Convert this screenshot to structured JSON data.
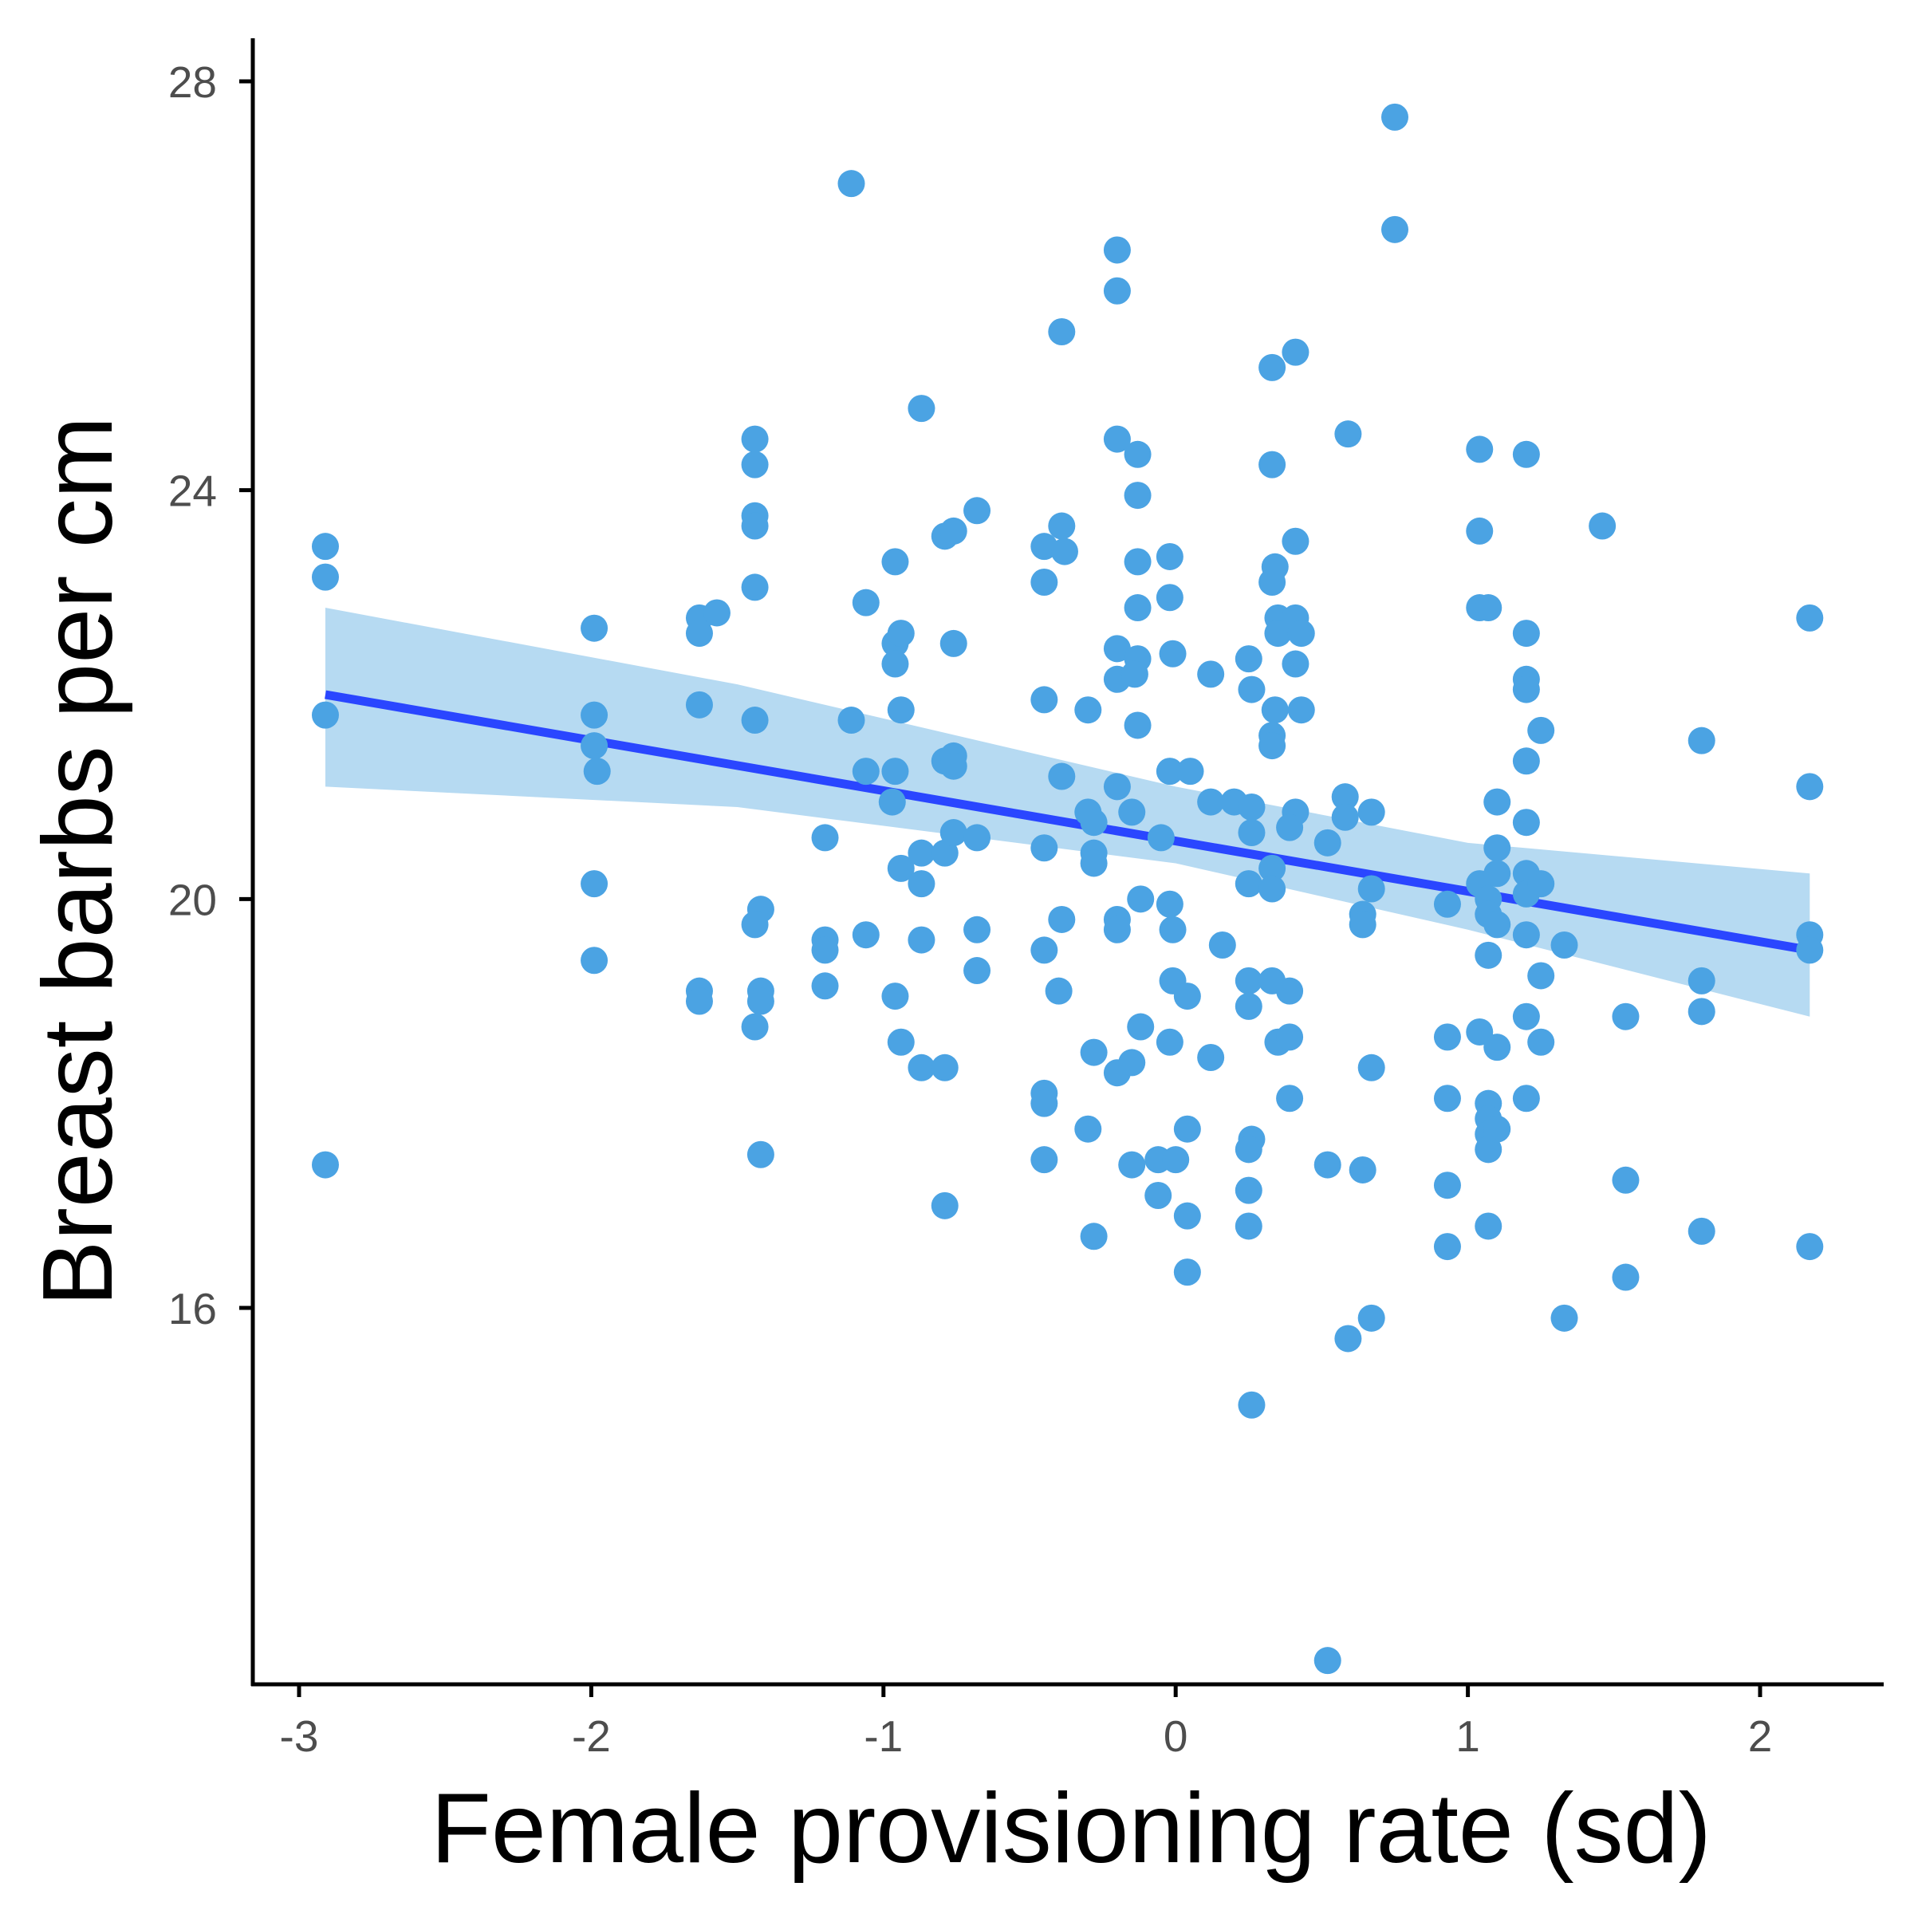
{
  "chart_data": {
    "type": "scatter",
    "xlabel": "Female provisioning rate (sd)",
    "ylabel": "Breast barbs per cm",
    "xlim": [
      -3.16,
      2.42
    ],
    "ylim": [
      11.56,
      28.4
    ],
    "x_ticks": [
      -3,
      -2,
      -1,
      0,
      1,
      2
    ],
    "x_tick_labels": [
      "-3",
      "-2",
      "-1",
      "0",
      "1",
      "2"
    ],
    "y_ticks": [
      16,
      20,
      24,
      28
    ],
    "y_tick_labels": [
      "16",
      "20",
      "24",
      "28"
    ],
    "grid": false,
    "legend": "none",
    "point_color": "#4BA3E3",
    "fit_color": "#2A46FF",
    "ribbon_color": "#B6DAF2",
    "fit_line": {
      "x": [
        -2.91,
        2.17
      ],
      "y": [
        22.0,
        19.5
      ]
    },
    "confidence_band": {
      "x": [
        -2.91,
        -1.5,
        0.0,
        1.0,
        2.17
      ],
      "upper": [
        22.85,
        22.1,
        21.1,
        20.55,
        20.25
      ],
      "lower": [
        21.1,
        20.9,
        20.35,
        19.7,
        18.85
      ]
    },
    "points": [
      {
        "x": -2.91,
        "y": 23.45
      },
      {
        "x": -2.91,
        "y": 23.15
      },
      {
        "x": -2.91,
        "y": 21.8
      },
      {
        "x": -2.91,
        "y": 17.4
      },
      {
        "x": -1.99,
        "y": 22.65
      },
      {
        "x": -1.99,
        "y": 21.8
      },
      {
        "x": -1.99,
        "y": 21.5
      },
      {
        "x": -1.98,
        "y": 21.25
      },
      {
        "x": -1.99,
        "y": 20.15
      },
      {
        "x": -1.99,
        "y": 19.4
      },
      {
        "x": -1.63,
        "y": 22.75
      },
      {
        "x": -1.63,
        "y": 22.6
      },
      {
        "x": -1.57,
        "y": 22.8
      },
      {
        "x": -1.63,
        "y": 21.9
      },
      {
        "x": -1.63,
        "y": 19.1
      },
      {
        "x": -1.63,
        "y": 19.0
      },
      {
        "x": -1.44,
        "y": 24.5
      },
      {
        "x": -1.44,
        "y": 24.25
      },
      {
        "x": -1.44,
        "y": 23.75
      },
      {
        "x": -1.44,
        "y": 23.65
      },
      {
        "x": -1.44,
        "y": 23.05
      },
      {
        "x": -1.44,
        "y": 21.75
      },
      {
        "x": -1.42,
        "y": 19.9
      },
      {
        "x": -1.44,
        "y": 19.75
      },
      {
        "x": -1.42,
        "y": 19.1
      },
      {
        "x": -1.42,
        "y": 19.0
      },
      {
        "x": -1.44,
        "y": 18.75
      },
      {
        "x": -1.42,
        "y": 17.5
      },
      {
        "x": -1.11,
        "y": 27.0
      },
      {
        "x": -1.2,
        "y": 20.6
      },
      {
        "x": -1.2,
        "y": 19.6
      },
      {
        "x": -1.2,
        "y": 19.5
      },
      {
        "x": -1.2,
        "y": 19.15
      },
      {
        "x": -1.11,
        "y": 21.75
      },
      {
        "x": -1.06,
        "y": 22.9
      },
      {
        "x": -1.06,
        "y": 21.25
      },
      {
        "x": -1.06,
        "y": 19.65
      },
      {
        "x": -0.96,
        "y": 23.3
      },
      {
        "x": -0.96,
        "y": 22.5
      },
      {
        "x": -0.96,
        "y": 22.3
      },
      {
        "x": -0.96,
        "y": 21.25
      },
      {
        "x": -0.97,
        "y": 20.95
      },
      {
        "x": -0.96,
        "y": 19.05
      },
      {
        "x": -0.94,
        "y": 22.6
      },
      {
        "x": -0.94,
        "y": 21.85
      },
      {
        "x": -0.94,
        "y": 20.3
      },
      {
        "x": -0.94,
        "y": 18.6
      },
      {
        "x": -0.87,
        "y": 24.8
      },
      {
        "x": -0.87,
        "y": 20.45
      },
      {
        "x": -0.87,
        "y": 20.15
      },
      {
        "x": -0.87,
        "y": 19.6
      },
      {
        "x": -0.87,
        "y": 18.35
      },
      {
        "x": -0.79,
        "y": 23.55
      },
      {
        "x": -0.79,
        "y": 21.35
      },
      {
        "x": -0.79,
        "y": 20.45
      },
      {
        "x": -0.79,
        "y": 18.35
      },
      {
        "x": -0.79,
        "y": 17.0
      },
      {
        "x": -0.76,
        "y": 23.6
      },
      {
        "x": -0.76,
        "y": 22.5
      },
      {
        "x": -0.76,
        "y": 21.4
      },
      {
        "x": -0.76,
        "y": 21.3
      },
      {
        "x": -0.76,
        "y": 20.65
      },
      {
        "x": -0.68,
        "y": 23.8
      },
      {
        "x": -0.68,
        "y": 20.6
      },
      {
        "x": -0.68,
        "y": 19.7
      },
      {
        "x": -0.68,
        "y": 19.3
      },
      {
        "x": -0.45,
        "y": 23.45
      },
      {
        "x": -0.45,
        "y": 23.1
      },
      {
        "x": -0.45,
        "y": 21.95
      },
      {
        "x": -0.45,
        "y": 20.5
      },
      {
        "x": -0.45,
        "y": 19.5
      },
      {
        "x": -0.45,
        "y": 18.1
      },
      {
        "x": -0.45,
        "y": 18.0
      },
      {
        "x": -0.45,
        "y": 17.45
      },
      {
        "x": -0.39,
        "y": 25.55
      },
      {
        "x": -0.39,
        "y": 23.65
      },
      {
        "x": -0.38,
        "y": 23.4
      },
      {
        "x": -0.39,
        "y": 21.2
      },
      {
        "x": -0.39,
        "y": 19.8
      },
      {
        "x": -0.4,
        "y": 19.1
      },
      {
        "x": -0.3,
        "y": 21.85
      },
      {
        "x": -0.3,
        "y": 20.85
      },
      {
        "x": -0.28,
        "y": 20.75
      },
      {
        "x": -0.28,
        "y": 20.45
      },
      {
        "x": -0.28,
        "y": 20.35
      },
      {
        "x": -0.28,
        "y": 18.5
      },
      {
        "x": -0.3,
        "y": 17.75
      },
      {
        "x": -0.28,
        "y": 16.7
      },
      {
        "x": -0.2,
        "y": 26.35
      },
      {
        "x": -0.2,
        "y": 25.95
      },
      {
        "x": -0.2,
        "y": 24.5
      },
      {
        "x": -0.2,
        "y": 22.45
      },
      {
        "x": -0.2,
        "y": 22.15
      },
      {
        "x": -0.2,
        "y": 21.1
      },
      {
        "x": -0.2,
        "y": 19.8
      },
      {
        "x": -0.2,
        "y": 19.7
      },
      {
        "x": -0.2,
        "y": 18.3
      },
      {
        "x": -0.13,
        "y": 24.35
      },
      {
        "x": -0.13,
        "y": 23.95
      },
      {
        "x": -0.13,
        "y": 23.3
      },
      {
        "x": -0.13,
        "y": 22.85
      },
      {
        "x": -0.13,
        "y": 22.35
      },
      {
        "x": -0.14,
        "y": 22.2
      },
      {
        "x": -0.13,
        "y": 21.7
      },
      {
        "x": -0.15,
        "y": 20.85
      },
      {
        "x": -0.12,
        "y": 20.0
      },
      {
        "x": -0.12,
        "y": 18.75
      },
      {
        "x": -0.15,
        "y": 18.4
      },
      {
        "x": -0.15,
        "y": 17.4
      },
      {
        "x": -0.02,
        "y": 23.35
      },
      {
        "x": -0.02,
        "y": 22.95
      },
      {
        "x": -0.01,
        "y": 22.4
      },
      {
        "x": -0.02,
        "y": 21.25
      },
      {
        "x": -0.05,
        "y": 20.6
      },
      {
        "x": -0.02,
        "y": 19.95
      },
      {
        "x": -0.01,
        "y": 19.7
      },
      {
        "x": -0.01,
        "y": 19.2
      },
      {
        "x": -0.02,
        "y": 18.6
      },
      {
        "x": -0.06,
        "y": 17.45
      },
      {
        "x": 0.0,
        "y": 17.45
      },
      {
        "x": -0.06,
        "y": 17.1
      },
      {
        "x": 0.05,
        "y": 21.25
      },
      {
        "x": 0.04,
        "y": 19.05
      },
      {
        "x": 0.04,
        "y": 17.75
      },
      {
        "x": 0.04,
        "y": 16.9
      },
      {
        "x": 0.04,
        "y": 16.35
      },
      {
        "x": 0.12,
        "y": 22.2
      },
      {
        "x": 0.12,
        "y": 20.95
      },
      {
        "x": 0.12,
        "y": 18.45
      },
      {
        "x": 0.16,
        "y": 19.55
      },
      {
        "x": 0.2,
        "y": 20.95
      },
      {
        "x": 0.25,
        "y": 22.35
      },
      {
        "x": 0.26,
        "y": 22.05
      },
      {
        "x": 0.26,
        "y": 20.9
      },
      {
        "x": 0.26,
        "y": 20.65
      },
      {
        "x": 0.25,
        "y": 20.15
      },
      {
        "x": 0.25,
        "y": 19.2
      },
      {
        "x": 0.25,
        "y": 18.95
      },
      {
        "x": 0.26,
        "y": 17.65
      },
      {
        "x": 0.25,
        "y": 17.55
      },
      {
        "x": 0.25,
        "y": 17.15
      },
      {
        "x": 0.25,
        "y": 16.8
      },
      {
        "x": 0.26,
        "y": 15.05
      },
      {
        "x": 0.33,
        "y": 25.2
      },
      {
        "x": 0.33,
        "y": 24.25
      },
      {
        "x": 0.34,
        "y": 23.25
      },
      {
        "x": 0.33,
        "y": 23.1
      },
      {
        "x": 0.35,
        "y": 22.75
      },
      {
        "x": 0.35,
        "y": 22.6
      },
      {
        "x": 0.34,
        "y": 21.85
      },
      {
        "x": 0.33,
        "y": 21.6
      },
      {
        "x": 0.33,
        "y": 21.5
      },
      {
        "x": 0.33,
        "y": 20.3
      },
      {
        "x": 0.33,
        "y": 20.1
      },
      {
        "x": 0.33,
        "y": 19.2
      },
      {
        "x": 0.35,
        "y": 18.6
      },
      {
        "x": 0.41,
        "y": 25.35
      },
      {
        "x": 0.41,
        "y": 23.5
      },
      {
        "x": 0.41,
        "y": 22.75
      },
      {
        "x": 0.43,
        "y": 22.6
      },
      {
        "x": 0.41,
        "y": 22.3
      },
      {
        "x": 0.43,
        "y": 21.85
      },
      {
        "x": 0.41,
        "y": 20.85
      },
      {
        "x": 0.39,
        "y": 20.7
      },
      {
        "x": 0.39,
        "y": 19.1
      },
      {
        "x": 0.39,
        "y": 18.65
      },
      {
        "x": 0.39,
        "y": 18.05
      },
      {
        "x": 0.52,
        "y": 20.55
      },
      {
        "x": 0.52,
        "y": 17.4
      },
      {
        "x": 0.52,
        "y": 12.55
      },
      {
        "x": 0.59,
        "y": 24.55
      },
      {
        "x": 0.58,
        "y": 21.0
      },
      {
        "x": 0.58,
        "y": 20.8
      },
      {
        "x": 0.59,
        "y": 15.7
      },
      {
        "x": 0.64,
        "y": 19.85
      },
      {
        "x": 0.64,
        "y": 19.75
      },
      {
        "x": 0.64,
        "y": 17.35
      },
      {
        "x": 0.67,
        "y": 20.85
      },
      {
        "x": 0.67,
        "y": 20.1
      },
      {
        "x": 0.67,
        "y": 18.35
      },
      {
        "x": 0.67,
        "y": 15.9
      },
      {
        "x": 0.75,
        "y": 27.65
      },
      {
        "x": 0.75,
        "y": 26.55
      },
      {
        "x": 0.93,
        "y": 19.95
      },
      {
        "x": 0.93,
        "y": 18.65
      },
      {
        "x": 0.93,
        "y": 18.05
      },
      {
        "x": 0.93,
        "y": 17.2
      },
      {
        "x": 0.93,
        "y": 16.6
      },
      {
        "x": 1.04,
        "y": 24.4
      },
      {
        "x": 1.04,
        "y": 23.6
      },
      {
        "x": 1.04,
        "y": 22.85
      },
      {
        "x": 1.04,
        "y": 20.15
      },
      {
        "x": 1.04,
        "y": 18.7
      },
      {
        "x": 1.07,
        "y": 22.85
      },
      {
        "x": 1.07,
        "y": 20.0
      },
      {
        "x": 1.07,
        "y": 19.85
      },
      {
        "x": 1.07,
        "y": 19.45
      },
      {
        "x": 1.07,
        "y": 18.0
      },
      {
        "x": 1.07,
        "y": 17.85
      },
      {
        "x": 1.07,
        "y": 17.7
      },
      {
        "x": 1.07,
        "y": 17.55
      },
      {
        "x": 1.07,
        "y": 16.8
      },
      {
        "x": 1.1,
        "y": 20.95
      },
      {
        "x": 1.1,
        "y": 20.5
      },
      {
        "x": 1.1,
        "y": 20.25
      },
      {
        "x": 1.1,
        "y": 19.75
      },
      {
        "x": 1.1,
        "y": 18.55
      },
      {
        "x": 1.1,
        "y": 17.75
      },
      {
        "x": 1.2,
        "y": 24.35
      },
      {
        "x": 1.2,
        "y": 22.6
      },
      {
        "x": 1.2,
        "y": 22.15
      },
      {
        "x": 1.2,
        "y": 22.05
      },
      {
        "x": 1.2,
        "y": 21.35
      },
      {
        "x": 1.2,
        "y": 20.75
      },
      {
        "x": 1.2,
        "y": 20.25
      },
      {
        "x": 1.2,
        "y": 20.05
      },
      {
        "x": 1.2,
        "y": 19.65
      },
      {
        "x": 1.2,
        "y": 18.85
      },
      {
        "x": 1.2,
        "y": 18.05
      },
      {
        "x": 1.25,
        "y": 21.65
      },
      {
        "x": 1.25,
        "y": 20.15
      },
      {
        "x": 1.25,
        "y": 19.25
      },
      {
        "x": 1.25,
        "y": 18.6
      },
      {
        "x": 1.33,
        "y": 19.55
      },
      {
        "x": 1.33,
        "y": 15.9
      },
      {
        "x": 1.46,
        "y": 23.65
      },
      {
        "x": 1.54,
        "y": 18.85
      },
      {
        "x": 1.54,
        "y": 17.25
      },
      {
        "x": 1.54,
        "y": 16.3
      },
      {
        "x": 1.8,
        "y": 21.55
      },
      {
        "x": 1.8,
        "y": 19.2
      },
      {
        "x": 1.8,
        "y": 18.9
      },
      {
        "x": 1.8,
        "y": 16.75
      },
      {
        "x": 2.17,
        "y": 22.75
      },
      {
        "x": 2.17,
        "y": 21.1
      },
      {
        "x": 2.17,
        "y": 19.65
      },
      {
        "x": 2.17,
        "y": 19.5
      },
      {
        "x": 2.17,
        "y": 16.6
      }
    ]
  }
}
